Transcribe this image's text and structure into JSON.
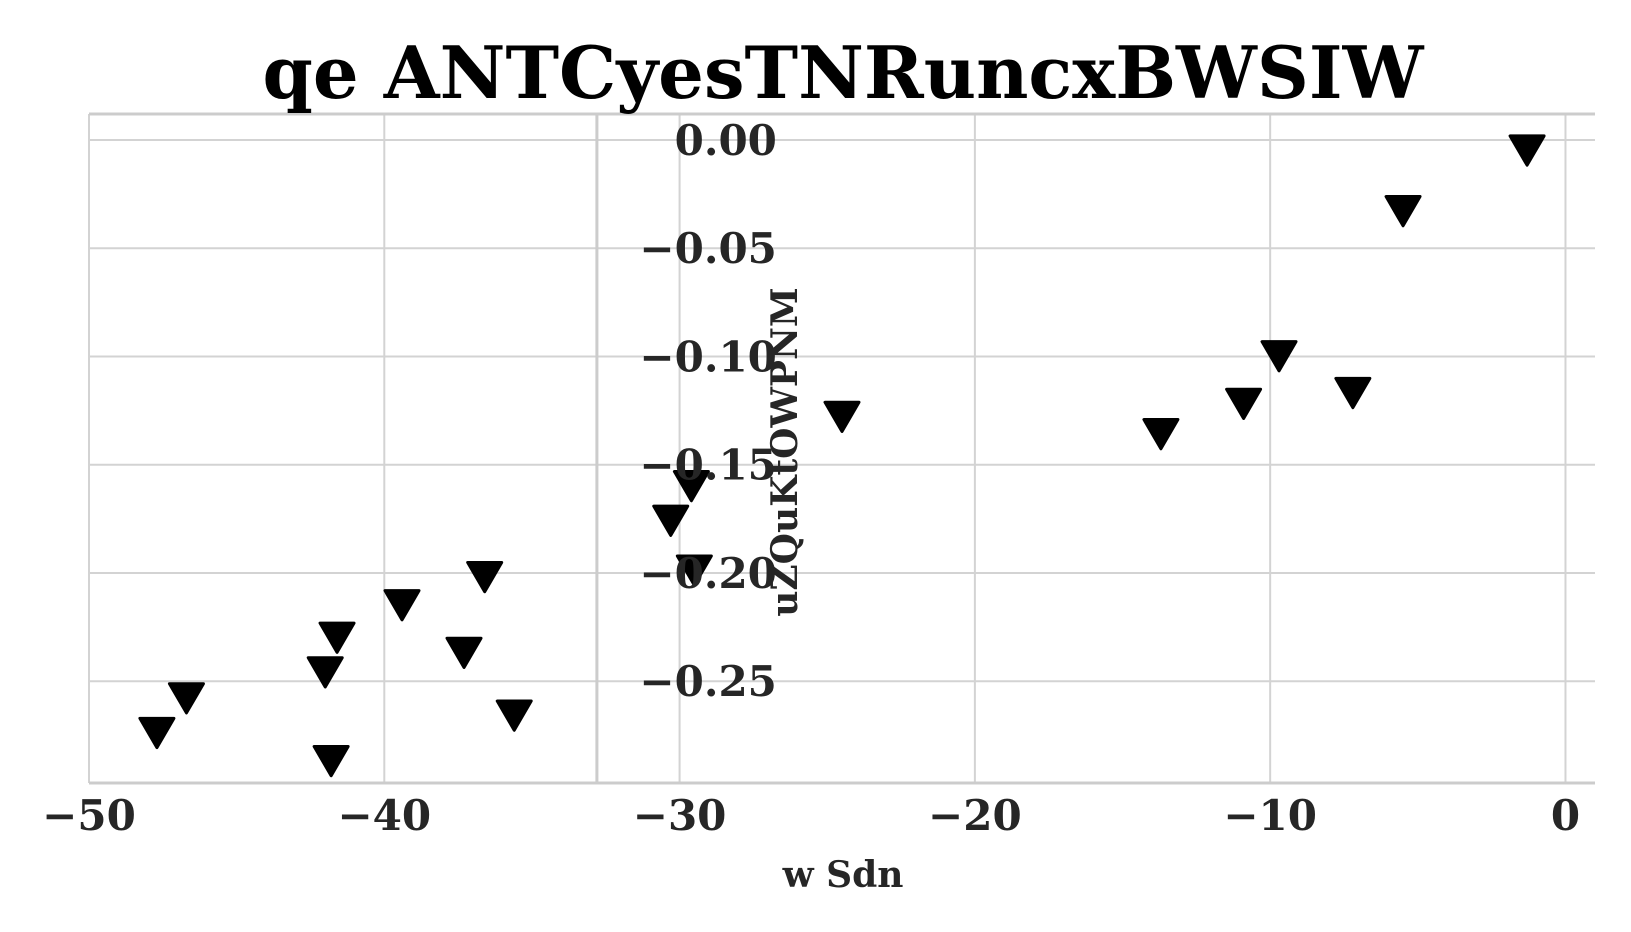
{
  "chart_data": {
    "type": "scatter",
    "title": "qe ANTCyesTNRuncxBWSIW",
    "xlabel": "w Sdn",
    "ylabel": "uZQuKtOWPNM",
    "xlim": [
      -50,
      1
    ],
    "ylim": [
      -0.297,
      0.012
    ],
    "xticks": [
      -50,
      -40,
      -30,
      -20,
      -10,
      0
    ],
    "yticks": [
      0.0,
      -0.05,
      -0.1,
      -0.15,
      -0.2,
      -0.25
    ],
    "xtick_labels": [
      "−50",
      "−40",
      "−30",
      "−20",
      "−10",
      "0"
    ],
    "ytick_labels": [
      "0.00",
      "−0.05",
      "−0.10",
      "−0.15",
      "−0.20",
      "−0.25"
    ],
    "grid": true,
    "y_axis_position": -32.8,
    "marker": "triangle-down",
    "marker_color": "#000000",
    "series": [
      {
        "x": [
          -1.3,
          -5.5,
          -9.7,
          -7.2,
          -10.9,
          -13.7,
          -24.5,
          -29.6,
          -30.3,
          -29.5,
          -36.6,
          -39.4,
          -37.3,
          -41.6,
          -42.0,
          -35.6,
          -46.7,
          -47.7,
          -41.8
        ],
        "y": [
          -0.003,
          -0.031,
          -0.098,
          -0.115,
          -0.12,
          -0.134,
          -0.126,
          -0.158,
          -0.174,
          -0.197,
          -0.2,
          -0.213,
          -0.235,
          -0.228,
          -0.244,
          -0.264,
          -0.256,
          -0.272,
          -0.285
        ]
      }
    ]
  }
}
